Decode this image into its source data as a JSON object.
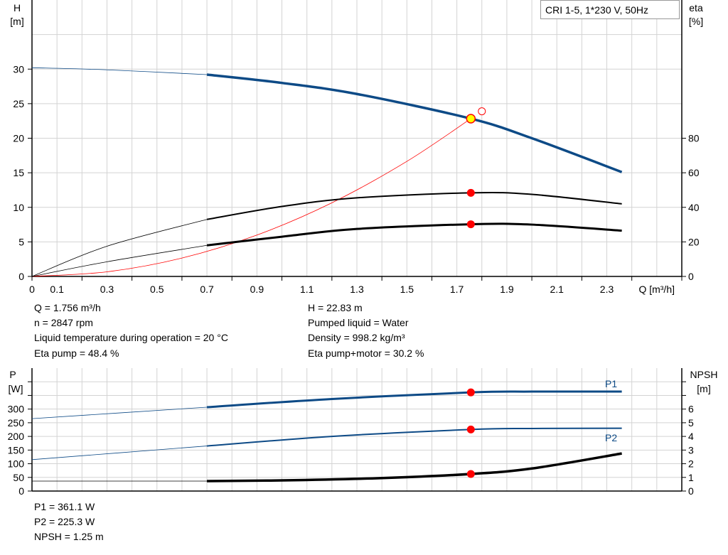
{
  "legend_box": "CRI 1-5, 1*230 V, 50Hz",
  "info_top": {
    "left": [
      "Q = 1.756 m³/h",
      "n = 2847 rpm",
      "Liquid temperature during operation = 20 °C",
      "Eta pump = 48.4 %"
    ],
    "right": [
      "H = 22.83 m",
      "Pumped liquid = Water",
      "Density = 998.2 kg/m³",
      "Eta pump+motor = 30.2 %"
    ]
  },
  "info_bottom": [
    "P1 = 361.1 W",
    "P2 = 225.3 W",
    "NPSH = 1.25 m"
  ],
  "colors": {
    "pump_curve": "#0d4a86",
    "efficiency": "#000000",
    "system_curve": "#ff0000",
    "duty_point": "#ff0000",
    "duty_highlight": "#ffff00",
    "grid": "#d3d3d3"
  },
  "chart_data": [
    {
      "type": "line",
      "title": "",
      "xlabel": "Q [m³/h]",
      "ylabel_left": [
        "H",
        "[m]"
      ],
      "ylabel_right": [
        "eta",
        "[%]"
      ],
      "xlim": [
        0,
        2.6
      ],
      "ylim_left": [
        0,
        40
      ],
      "ylim_right": [
        0,
        160
      ],
      "x_ticks": [
        "0",
        "0.1",
        "0.3",
        "0.5",
        "0.7",
        "0.9",
        "1.1",
        "1.3",
        "1.5",
        "1.7",
        "1.9",
        "2.1",
        "2.3"
      ],
      "y_ticks_left": [
        "0",
        "5",
        "10",
        "15",
        "20",
        "25",
        "30"
      ],
      "y_ticks_right": [
        "0",
        "20",
        "40",
        "60",
        "80"
      ],
      "grid": true,
      "series": [
        {
          "axis": "left",
          "kind": "H",
          "points": [
            [
              0,
              30.2
            ],
            [
              0.3,
              29.9
            ],
            [
              0.7,
              29.2
            ],
            [
              1.0,
              28.0
            ],
            [
              1.3,
              26.4
            ],
            [
              1.756,
              22.83
            ],
            [
              2.0,
              20.0
            ],
            [
              2.36,
              15.1
            ]
          ]
        },
        {
          "axis": "right",
          "kind": "eta pump",
          "points": [
            [
              0,
              0
            ],
            [
              0.3,
              17.5
            ],
            [
              0.7,
              33
            ],
            [
              1.0,
              40.5
            ],
            [
              1.3,
              45.5
            ],
            [
              1.756,
              48.4
            ],
            [
              2.0,
              47.5
            ],
            [
              2.36,
              42
            ]
          ]
        },
        {
          "axis": "right",
          "kind": "eta pump+motor",
          "points": [
            [
              0,
              0
            ],
            [
              0.3,
              8.5
            ],
            [
              0.7,
              18
            ],
            [
              1.0,
              23
            ],
            [
              1.3,
              27.5
            ],
            [
              1.756,
              30.2
            ],
            [
              2.0,
              30
            ],
            [
              2.36,
              26.5
            ]
          ]
        },
        {
          "axis": "left",
          "kind": "system",
          "points": [
            [
              0,
              0
            ],
            [
              0.3,
              0.67
            ],
            [
              0.6,
              2.66
            ],
            [
              0.9,
              5.99
            ],
            [
              1.2,
              10.66
            ],
            [
              1.5,
              16.65
            ],
            [
              1.756,
              22.83
            ]
          ]
        }
      ],
      "duty_point": {
        "Q": 1.756,
        "H": 22.83,
        "eta_pump": 48.4,
        "eta_pump_motor": 30.2
      },
      "requested_point": {
        "Q": 1.8,
        "H": 23.9
      },
      "thin_below_Q": 0.7
    },
    {
      "type": "line",
      "xlim": [
        0,
        2.6
      ],
      "ylabel_left": [
        "P",
        "[W]"
      ],
      "ylabel_right": [
        "NPSH",
        "[m]"
      ],
      "ylim_left": [
        0,
        450
      ],
      "ylim_right": [
        0,
        9
      ],
      "y_ticks_left": [
        "0",
        "50",
        "100",
        "150",
        "200",
        "250",
        "300"
      ],
      "y_ticks_right": [
        "0",
        "1",
        "2",
        "3",
        "4",
        "5",
        "6"
      ],
      "grid": true,
      "series": [
        {
          "name": "P1",
          "axis": "left",
          "points": [
            [
              0,
              265
            ],
            [
              0.7,
              307
            ],
            [
              1.2,
              337
            ],
            [
              1.756,
              361.1
            ],
            [
              2.0,
              364
            ],
            [
              2.36,
              364
            ]
          ]
        },
        {
          "name": "P2",
          "axis": "left",
          "points": [
            [
              0,
              115
            ],
            [
              0.7,
              165
            ],
            [
              1.2,
              200
            ],
            [
              1.756,
              225.3
            ],
            [
              2.0,
              229
            ],
            [
              2.36,
              230
            ]
          ]
        },
        {
          "axis": "right",
          "kind": "NPSH",
          "points": [
            [
              0,
              0.73
            ],
            [
              0.7,
              0.73
            ],
            [
              1.0,
              0.78
            ],
            [
              1.4,
              0.95
            ],
            [
              1.756,
              1.25
            ],
            [
              2.0,
              1.65
            ],
            [
              2.36,
              2.75
            ]
          ]
        }
      ],
      "duty_point": {
        "Q": 1.756,
        "P1": 361.1,
        "P2": 225.3,
        "NPSH": 1.25
      }
    }
  ]
}
